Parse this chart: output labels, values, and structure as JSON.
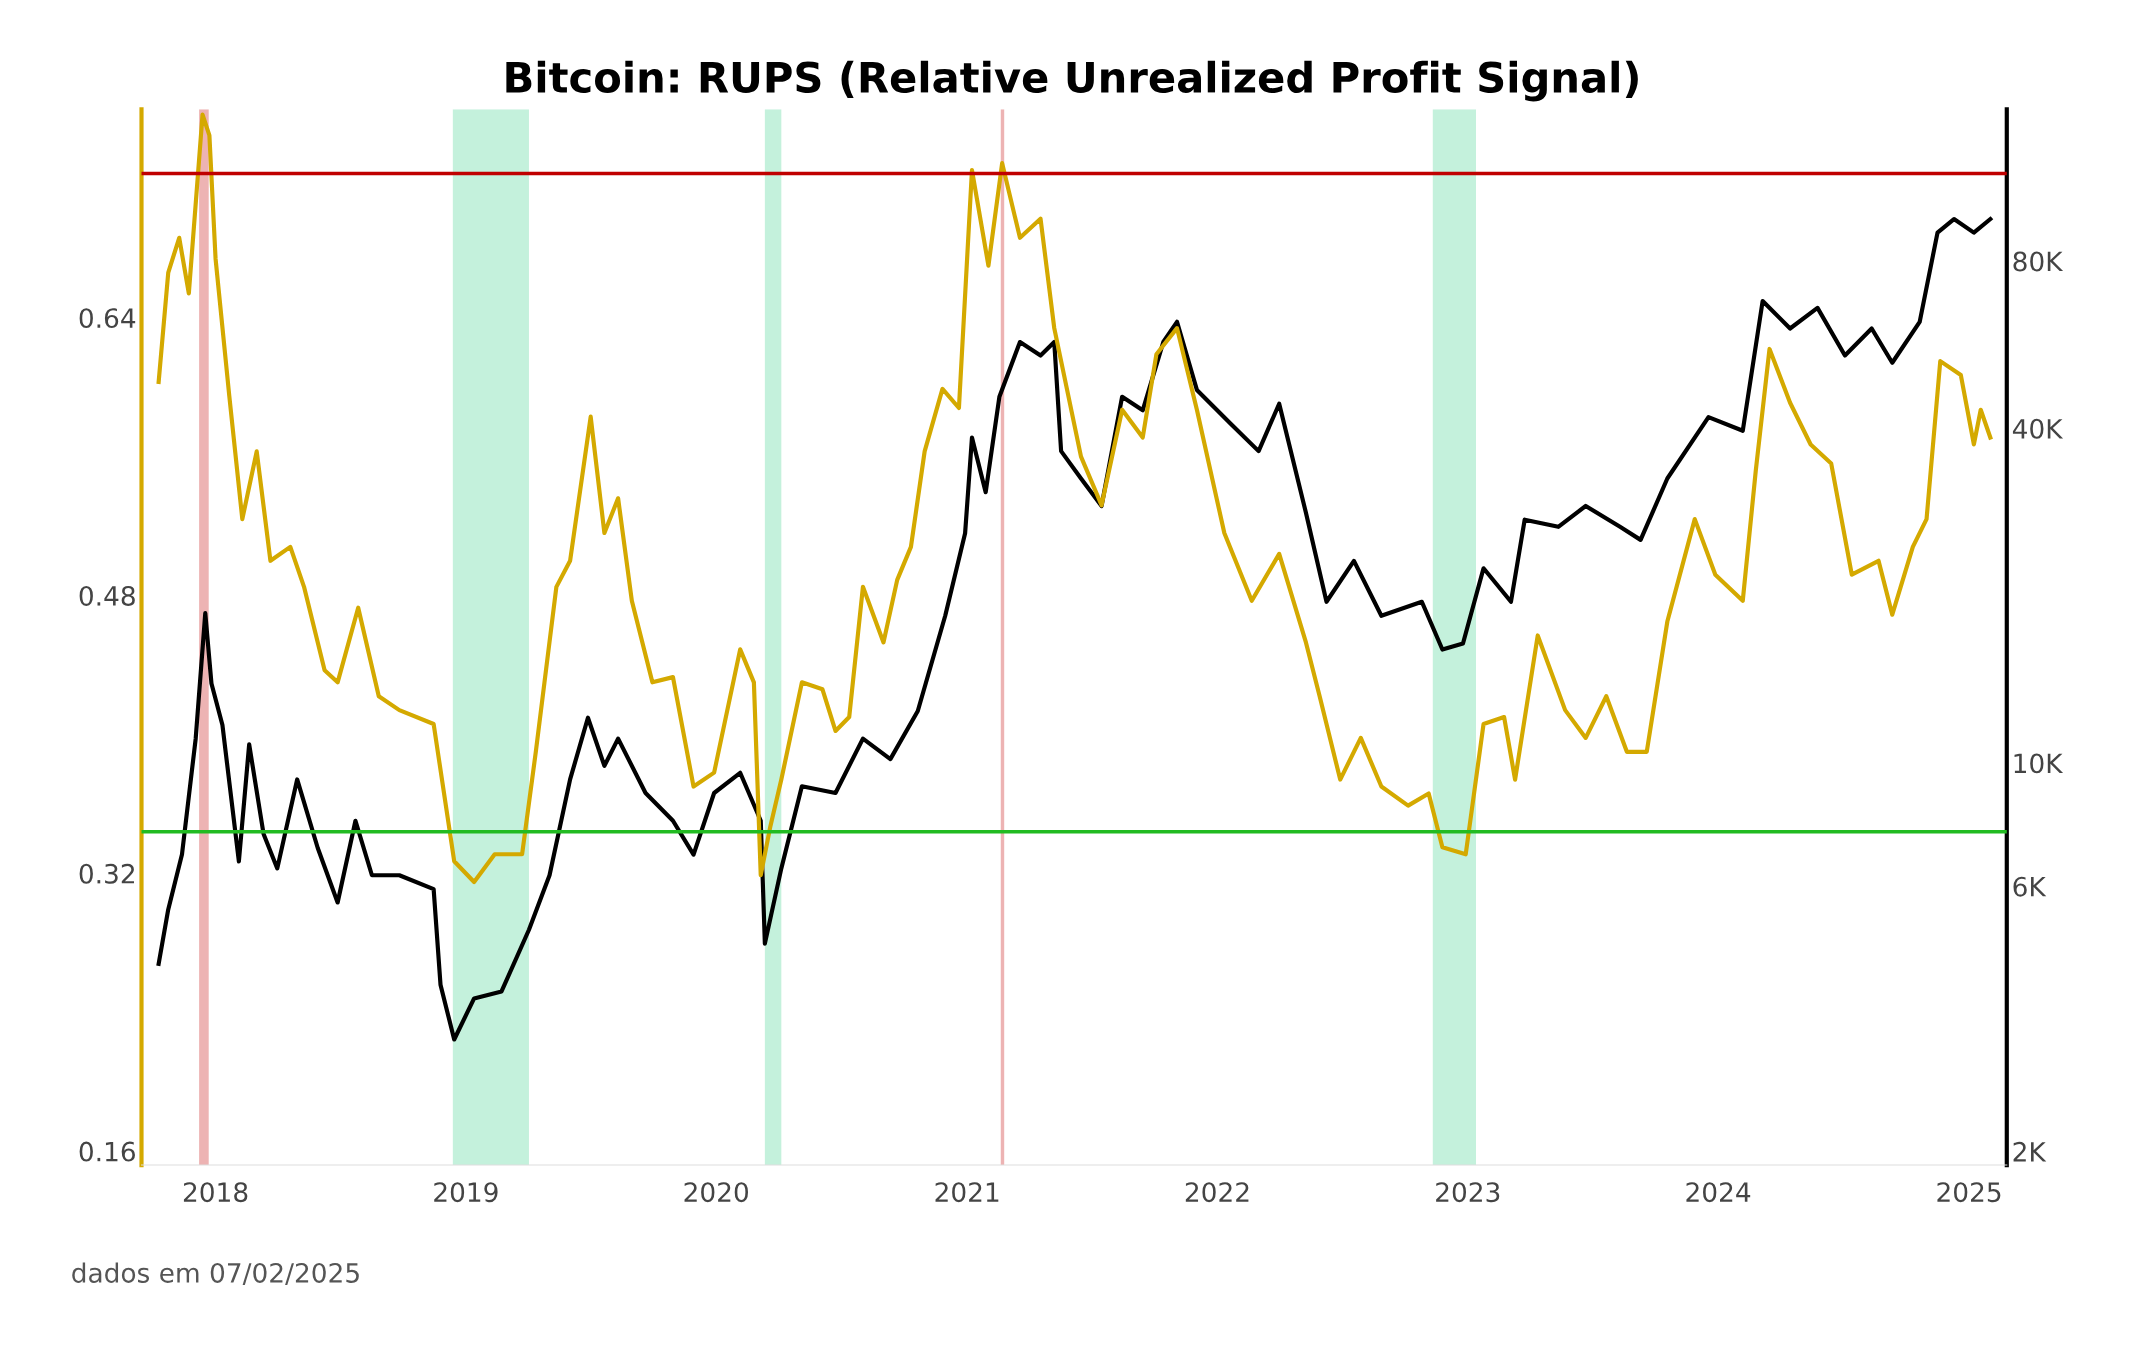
{
  "chart_data": {
    "type": "line",
    "title": "Bitcoin: RUPS (Relative Unrealized Profit Signal)",
    "annotations": [
      "dados em 07/02/2025"
    ],
    "xlim": [
      "2017-09-15",
      "2025-02-25"
    ],
    "xticks": [
      {
        "value": "2018-01-01",
        "label": "2018"
      },
      {
        "value": "2019-01-01",
        "label": "2019"
      },
      {
        "value": "2020-01-01",
        "label": "2020"
      },
      {
        "value": "2021-01-01",
        "label": "2021"
      },
      {
        "value": "2022-01-01",
        "label": "2022"
      },
      {
        "value": "2023-01-01",
        "label": "2023"
      },
      {
        "value": "2024-01-01",
        "label": "2024"
      },
      {
        "value": "2025-01-01",
        "label": "2025"
      }
    ],
    "ylim": [
      0.152,
      0.76
    ],
    "yticks": [
      0.16,
      0.32,
      0.48,
      0.64
    ],
    "log": "y2",
    "y2lim": [
      1890,
      150000
    ],
    "y2ticks": [
      {
        "value": 2000,
        "label": "2K"
      },
      {
        "value": 6000,
        "label": "6K"
      },
      {
        "value": 10000,
        "label": "10K"
      },
      {
        "value": 40000,
        "label": "40K"
      },
      {
        "value": 80000,
        "label": "80K"
      }
    ],
    "grid": false,
    "line_style": "solid",
    "marker": "none",
    "ref_lines": [
      {
        "axis": "y",
        "value": 0.723,
        "label": null,
        "color": "#c00000"
      },
      {
        "axis": "y",
        "value": 0.344,
        "label": null,
        "color": "#22bb22"
      }
    ],
    "bands": [
      {
        "axis": "x",
        "from": "2017-12-08",
        "to": "2017-12-22",
        "label": null,
        "color": "#e8a0a0"
      },
      {
        "axis": "x",
        "from": "2021-02-19",
        "to": "2021-02-24",
        "label": null,
        "color": "#e8a0a0"
      },
      {
        "axis": "x",
        "from": "2018-12-13",
        "to": "2019-04-03",
        "label": null,
        "color": "#b5edd3"
      },
      {
        "axis": "x",
        "from": "2020-03-12",
        "to": "2020-04-05",
        "label": null,
        "color": "#b5edd3"
      },
      {
        "axis": "x",
        "from": "2022-11-11",
        "to": "2023-01-13",
        "label": null,
        "color": "#b5edd3"
      }
    ],
    "series": [
      {
        "axis": "y",
        "color": "#d4a900",
        "x": [
          "2017-10-10",
          "2017-10-24",
          "2017-11-09",
          "2017-11-23",
          "2017-12-13",
          "2017-12-23",
          "2018-01-01",
          "2018-01-21",
          "2018-02-09",
          "2018-03-02",
          "2018-03-22",
          "2018-04-20",
          "2018-05-10",
          "2018-06-09",
          "2018-06-28",
          "2018-07-28",
          "2018-08-27",
          "2018-09-26",
          "2018-11-15",
          "2018-12-15",
          "2019-01-13",
          "2019-02-12",
          "2019-03-24",
          "2019-04-13",
          "2019-05-13",
          "2019-06-02",
          "2019-07-02",
          "2019-07-22",
          "2019-08-11",
          "2019-08-31",
          "2019-09-30",
          "2019-10-30",
          "2019-11-29",
          "2019-12-29",
          "2020-02-05",
          "2020-02-25",
          "2020-03-06",
          "2020-03-20",
          "2020-04-05",
          "2020-05-05",
          "2020-06-04",
          "2020-06-23",
          "2020-07-13",
          "2020-08-02",
          "2020-09-01",
          "2020-09-21",
          "2020-10-11",
          "2020-10-31",
          "2020-11-26",
          "2020-12-20",
          "2021-01-08",
          "2021-02-01",
          "2021-02-21",
          "2021-03-19",
          "2021-04-18",
          "2021-05-08",
          "2021-06-16",
          "2021-07-16",
          "2021-08-15",
          "2021-09-14",
          "2021-10-04",
          "2021-11-03",
          "2021-12-02",
          "2022-01-11",
          "2022-02-20",
          "2022-04-01",
          "2022-05-10",
          "2022-05-30",
          "2022-06-29",
          "2022-07-29",
          "2022-08-28",
          "2022-10-06",
          "2022-11-05",
          "2022-11-25",
          "2022-12-29",
          "2023-01-24",
          "2023-02-23",
          "2023-03-11",
          "2023-04-13",
          "2023-05-23",
          "2023-06-22",
          "2023-07-22",
          "2023-08-21",
          "2023-09-19",
          "2023-10-19",
          "2023-11-28",
          "2023-12-28",
          "2024-02-06",
          "2024-02-25",
          "2024-03-16",
          "2024-04-15",
          "2024-05-15",
          "2024-06-14",
          "2024-07-14",
          "2024-08-22",
          "2024-09-11",
          "2024-10-11",
          "2024-10-31",
          "2024-11-20",
          "2024-12-20",
          "2025-01-08",
          "2025-01-18",
          "2025-02-01"
        ],
        "values": [
          0.603,
          0.666,
          0.686,
          0.654,
          0.757,
          0.745,
          0.674,
          0.595,
          0.524,
          0.563,
          0.5,
          0.508,
          0.485,
          0.437,
          0.43,
          0.473,
          0.422,
          0.414,
          0.406,
          0.327,
          0.315,
          0.331,
          0.331,
          0.39,
          0.485,
          0.5,
          0.583,
          0.516,
          0.536,
          0.477,
          0.43,
          0.433,
          0.37,
          0.378,
          0.449,
          0.43,
          0.319,
          0.347,
          0.374,
          0.43,
          0.426,
          0.402,
          0.41,
          0.485,
          0.453,
          0.489,
          0.508,
          0.563,
          0.599,
          0.588,
          0.725,
          0.67,
          0.729,
          0.686,
          0.697,
          0.634,
          0.56,
          0.532,
          0.587,
          0.571,
          0.619,
          0.634,
          0.587,
          0.516,
          0.477,
          0.504,
          0.453,
          0.422,
          0.374,
          0.398,
          0.37,
          0.359,
          0.366,
          0.335,
          0.331,
          0.406,
          0.41,
          0.374,
          0.457,
          0.414,
          0.398,
          0.422,
          0.39,
          0.39,
          0.465,
          0.524,
          0.492,
          0.477,
          0.552,
          0.622,
          0.591,
          0.567,
          0.556,
          0.492,
          0.5,
          0.469,
          0.508,
          0.524,
          0.615,
          0.607,
          0.567,
          0.587,
          0.571
        ]
      },
      {
        "axis": "y2",
        "color": "#000000",
        "x": [
          "2017-10-10",
          "2017-10-24",
          "2017-11-13",
          "2017-12-03",
          "2017-12-17",
          "2017-12-26",
          "2018-01-11",
          "2018-02-04",
          "2018-02-19",
          "2018-03-12",
          "2018-04-01",
          "2018-04-30",
          "2018-05-30",
          "2018-06-28",
          "2018-07-24",
          "2018-08-17",
          "2018-09-26",
          "2018-11-15",
          "2018-11-25",
          "2018-12-15",
          "2019-01-13",
          "2019-02-22",
          "2019-04-03",
          "2019-05-03",
          "2019-06-02",
          "2019-06-28",
          "2019-07-22",
          "2019-08-11",
          "2019-09-20",
          "2019-10-30",
          "2019-11-29",
          "2019-12-29",
          "2020-02-05",
          "2020-03-06",
          "2020-03-12",
          "2020-04-05",
          "2020-05-05",
          "2020-06-23",
          "2020-08-02",
          "2020-09-11",
          "2020-10-21",
          "2020-11-30",
          "2020-12-29",
          "2021-01-08",
          "2021-01-28",
          "2021-02-17",
          "2021-03-19",
          "2021-04-18",
          "2021-05-08",
          "2021-05-18",
          "2021-06-16",
          "2021-07-16",
          "2021-08-15",
          "2021-09-14",
          "2021-10-14",
          "2021-11-03",
          "2021-12-02",
          "2022-01-21",
          "2022-03-02",
          "2022-04-01",
          "2022-05-10",
          "2022-06-09",
          "2022-07-19",
          "2022-08-28",
          "2022-10-26",
          "2022-11-25",
          "2022-12-25",
          "2023-01-24",
          "2023-03-05",
          "2023-03-25",
          "2023-05-13",
          "2023-06-22",
          "2023-08-11",
          "2023-09-10",
          "2023-10-19",
          "2023-12-18",
          "2024-02-06",
          "2024-03-06",
          "2024-04-15",
          "2024-05-25",
          "2024-07-04",
          "2024-08-12",
          "2024-09-11",
          "2024-10-21",
          "2024-11-16",
          "2024-12-10",
          "2025-01-08",
          "2025-02-01"
        ],
        "values": [
          4350,
          5450,
          6840,
          11060,
          18600,
          13900,
          11700,
          6650,
          10800,
          7450,
          6460,
          9340,
          7030,
          5610,
          7870,
          6280,
          6280,
          5930,
          3990,
          3180,
          3770,
          3880,
          5010,
          6280,
          9340,
          12060,
          9880,
          11060,
          8830,
          7870,
          6840,
          8830,
          9600,
          7870,
          4730,
          6460,
          9080,
          8830,
          11060,
          10160,
          12400,
          18400,
          25900,
          38500,
          30700,
          45600,
          57200,
          54100,
          57200,
          36400,
          32500,
          29000,
          45600,
          43100,
          57200,
          62200,
          46900,
          40700,
          36400,
          44300,
          28200,
          19500,
          23100,
          18400,
          19500,
          16000,
          16400,
          22400,
          19500,
          27400,
          26600,
          29000,
          26600,
          25200,
          32500,
          41900,
          39600,
          67800,
          60500,
          65900,
          54100,
          60500,
          52500,
          62200,
          90000,
          95200,
          90000,
          95200
        ]
      }
    ]
  }
}
